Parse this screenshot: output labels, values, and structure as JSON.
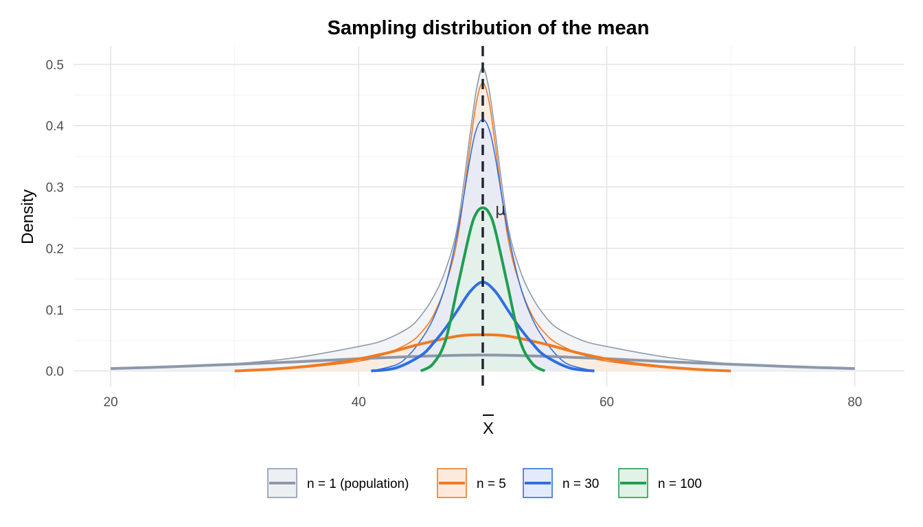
{
  "chart_data": {
    "type": "line",
    "title": "Sampling distribution of the mean",
    "xlabel": "X",
    "xlabel_overline": true,
    "ylabel": "Density",
    "xlim": [
      17,
      84
    ],
    "ylim": [
      -0.025,
      0.53
    ],
    "x_ticks": [
      20,
      40,
      60,
      80
    ],
    "y_ticks": [
      0.0,
      0.1,
      0.2,
      0.3,
      0.4,
      0.5
    ],
    "x_tick_labels": [
      "20",
      "40",
      "60",
      "80"
    ],
    "y_tick_labels": [
      "0.0",
      "0.1",
      "0.2",
      "0.3",
      "0.4",
      "0.5"
    ],
    "grid": true,
    "legend_position": "bottom",
    "reference_line": {
      "x": 50,
      "label": "μ",
      "style": "dashed",
      "color": "#1f2633"
    },
    "series": [
      {
        "name": "n = 1 (population)",
        "line_color": "#8c98aa",
        "fill_color": "#edf0f3",
        "thick_curve": {
          "x": [
            20,
            25,
            30,
            35,
            40,
            45,
            50,
            55,
            60,
            65,
            70,
            75,
            80
          ],
          "y": [
            0.004,
            0.007,
            0.011,
            0.015,
            0.02,
            0.024,
            0.026,
            0.024,
            0.02,
            0.015,
            0.011,
            0.007,
            0.004
          ]
        },
        "thin_envelope": {
          "x": [
            20,
            25,
            30,
            35,
            40,
            42,
            44,
            45,
            46,
            47,
            48,
            49,
            49.5,
            50,
            50.5,
            51,
            52,
            53,
            54,
            55,
            56,
            58,
            60,
            65,
            70,
            75,
            80
          ],
          "y": [
            0.005,
            0.008,
            0.012,
            0.022,
            0.04,
            0.05,
            0.07,
            0.09,
            0.12,
            0.165,
            0.24,
            0.39,
            0.46,
            0.495,
            0.46,
            0.39,
            0.24,
            0.165,
            0.12,
            0.09,
            0.07,
            0.05,
            0.04,
            0.022,
            0.012,
            0.008,
            0.005
          ]
        }
      },
      {
        "name": "n = 5",
        "line_color": "#f07a22",
        "fill_color": "#fdeadb",
        "thick_curve": {
          "x": [
            30,
            33,
            36,
            39,
            42,
            45,
            48,
            50,
            52,
            55,
            58,
            61,
            64,
            67,
            70
          ],
          "y": [
            0.0,
            0.003,
            0.008,
            0.016,
            0.028,
            0.044,
            0.057,
            0.059,
            0.057,
            0.044,
            0.028,
            0.016,
            0.008,
            0.003,
            0.0
          ]
        },
        "thin_envelope": {
          "x": [
            30,
            35,
            40,
            42,
            44,
            45,
            46,
            47,
            48,
            49,
            49.5,
            50,
            50.5,
            51,
            52,
            53,
            54,
            55,
            56,
            58,
            60,
            65,
            70
          ],
          "y": [
            0.0,
            0.005,
            0.016,
            0.027,
            0.045,
            0.062,
            0.09,
            0.14,
            0.22,
            0.37,
            0.44,
            0.47,
            0.44,
            0.37,
            0.22,
            0.14,
            0.09,
            0.062,
            0.045,
            0.027,
            0.016,
            0.005,
            0.0
          ]
        }
      },
      {
        "name": "n = 30",
        "line_color": "#2f6ee0",
        "fill_color": "#e3ebfa",
        "thick_curve": {
          "x": [
            41,
            43,
            45,
            46,
            47,
            48,
            49,
            50,
            51,
            52,
            53,
            54,
            55,
            57,
            59
          ],
          "y": [
            0.0,
            0.005,
            0.025,
            0.045,
            0.07,
            0.1,
            0.13,
            0.145,
            0.13,
            0.1,
            0.07,
            0.045,
            0.025,
            0.005,
            0.0
          ]
        },
        "thin_envelope": {
          "x": [
            41,
            43,
            44,
            45,
            46,
            47,
            48,
            49,
            49.5,
            50,
            50.5,
            51,
            52,
            53,
            54,
            55,
            56,
            57,
            59
          ],
          "y": [
            0.0,
            0.01,
            0.025,
            0.05,
            0.085,
            0.14,
            0.23,
            0.35,
            0.395,
            0.41,
            0.395,
            0.35,
            0.23,
            0.14,
            0.085,
            0.05,
            0.025,
            0.01,
            0.0
          ]
        }
      },
      {
        "name": "n = 100",
        "line_color": "#1f9e50",
        "fill_color": "#e1f2e7",
        "thick_curve": {
          "x": [
            45,
            46,
            47,
            48,
            49,
            49.5,
            50,
            50.5,
            51,
            52,
            53,
            54,
            55
          ],
          "y": [
            0.0,
            0.012,
            0.05,
            0.14,
            0.23,
            0.258,
            0.266,
            0.258,
            0.23,
            0.14,
            0.05,
            0.012,
            0.0
          ]
        }
      }
    ]
  }
}
